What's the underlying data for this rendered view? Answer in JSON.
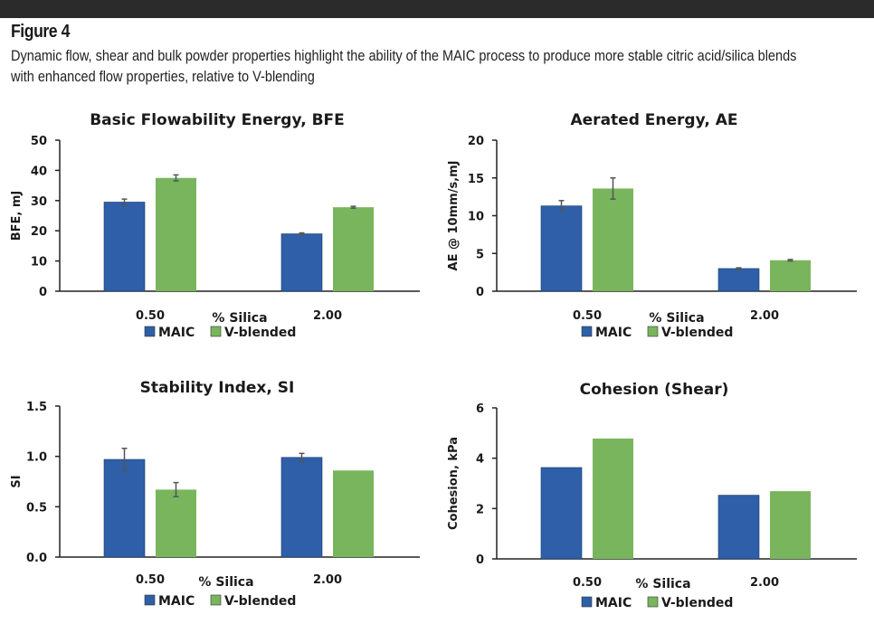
{
  "figure": {
    "title": "Figure 4",
    "caption_line1": "Dynamic flow, shear and bulk powder properties highlight the ability of the MAIC process to produce more stable citric acid/silica blends",
    "caption_line2": "with enhanced flow properties, relative to V-blending"
  },
  "colors": {
    "MAIC": "#2e5fa8",
    "V-blended": "#79b55c",
    "axis": "#222222",
    "error_bar": "#555555",
    "top_bar": "#2b2b2b"
  },
  "chart_data": [
    {
      "type": "bar",
      "title": "Basic Flowability Energy, BFE",
      "xlabel": "% Silica",
      "ylabel": "BFE, mJ",
      "categories": [
        "0.50",
        "2.00"
      ],
      "ylim": [
        0,
        50
      ],
      "yticks": [
        "0",
        "10",
        "20",
        "30",
        "40",
        "50"
      ],
      "series": [
        {
          "name": "MAIC",
          "values": [
            29.5,
            19.0
          ],
          "errors": [
            1.0,
            0.3
          ]
        },
        {
          "name": "V-blended",
          "values": [
            37.5,
            27.8
          ],
          "errors": [
            1.0,
            0.3
          ]
        }
      ],
      "legend": "bottom"
    },
    {
      "type": "bar",
      "title": "Aerated Energy, AE",
      "xlabel": "% Silica",
      "ylabel": "AE @ 10mm/s,mJ",
      "categories": [
        "0.50",
        "2.00"
      ],
      "ylim": [
        0,
        20
      ],
      "yticks": [
        "0",
        "5",
        "10",
        "15",
        "20"
      ],
      "series": [
        {
          "name": "MAIC",
          "values": [
            11.3,
            3.0
          ],
          "errors": [
            0.7,
            0.1
          ]
        },
        {
          "name": "V-blended",
          "values": [
            13.6,
            4.1
          ],
          "errors": [
            1.4,
            0.1
          ]
        }
      ],
      "legend": "bottom"
    },
    {
      "type": "bar",
      "title": "Stability Index, SI",
      "xlabel": "% Silica",
      "ylabel": "SI",
      "categories": [
        "0.50",
        "2.00"
      ],
      "ylim": [
        0,
        1.5
      ],
      "yticks": [
        "0.0",
        "0.5",
        "1.0",
        "1.5"
      ],
      "series": [
        {
          "name": "MAIC",
          "values": [
            0.97,
            0.99
          ],
          "errors": [
            0.11,
            0.04
          ]
        },
        {
          "name": "V-blended",
          "values": [
            0.67,
            0.86
          ],
          "errors": [
            0.07,
            0.0
          ]
        }
      ],
      "legend": "bottom"
    },
    {
      "type": "bar",
      "title": "Cohesion (Shear)",
      "xlabel": "% Silica",
      "ylabel": "Cohesion, kPa",
      "categories": [
        "0.50",
        "2.00"
      ],
      "ylim": [
        0,
        6
      ],
      "yticks": [
        "0",
        "2",
        "4",
        "6"
      ],
      "series": [
        {
          "name": "MAIC",
          "values": [
            3.63,
            2.53
          ]
        },
        {
          "name": "V-blended",
          "values": [
            4.78,
            2.69
          ]
        }
      ],
      "legend": "bottom"
    }
  ]
}
